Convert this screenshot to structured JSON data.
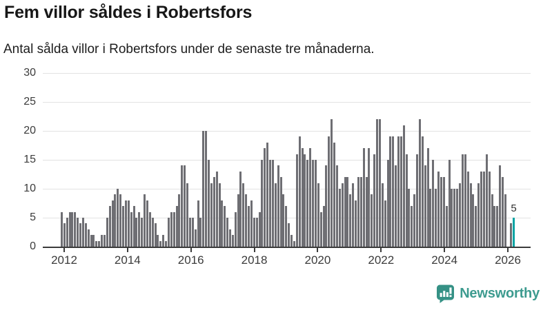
{
  "header": {
    "title": "Fem villor såldes i Robertsfors",
    "subtitle": "Antal sålda villor i Robertsfors under de senaste tre månaderna."
  },
  "chart_data": {
    "type": "bar",
    "title": "Fem villor såldes i Robertsfors",
    "subtitle": "Antal sålda villor i Robertsfors under de senaste tre månaderna.",
    "ylabel": "",
    "xlabel": "",
    "ylim": [
      0,
      30
    ],
    "y_tick_labels": [
      "0",
      "5",
      "10",
      "15",
      "20",
      "25",
      "30"
    ],
    "y_tick_values": [
      0,
      5,
      10,
      15,
      20,
      25,
      30
    ],
    "x_tick_labels": [
      "2012",
      "2014",
      "2016",
      "2018",
      "2020",
      "2022",
      "2024",
      "2026"
    ],
    "grid": "horizontal",
    "period_start": "2012",
    "period_end": "2026",
    "values": [
      6,
      4,
      5,
      6,
      6,
      6,
      5,
      4,
      5,
      4,
      3,
      2,
      2,
      1,
      1,
      2,
      2,
      5,
      7,
      8,
      9,
      10,
      9,
      7,
      8,
      8,
      6,
      7,
      5,
      6,
      5,
      9,
      8,
      6,
      5,
      4,
      2,
      1,
      2,
      1,
      5,
      6,
      6,
      7,
      9,
      14,
      14,
      11,
      5,
      5,
      3,
      8,
      5,
      20,
      20,
      15,
      11,
      12,
      13,
      11,
      8,
      7,
      5,
      3,
      2,
      6,
      9,
      13,
      11,
      9,
      7,
      8,
      5,
      5,
      6,
      15,
      17,
      18,
      15,
      15,
      11,
      14,
      12,
      9,
      7,
      4,
      2,
      1,
      16,
      19,
      17,
      16,
      15,
      17,
      15,
      15,
      11,
      6,
      7,
      14,
      19,
      22,
      18,
      14,
      10,
      11,
      12,
      12,
      9,
      11,
      8,
      12,
      12,
      17,
      12,
      17,
      9,
      16,
      22,
      22,
      11,
      8,
      15,
      19,
      19,
      14,
      19,
      19,
      21,
      16,
      10,
      7,
      9,
      16,
      22,
      19,
      14,
      17,
      10,
      15,
      10,
      13,
      12,
      12,
      7,
      15,
      10,
      10,
      10,
      11,
      16,
      16,
      13,
      11,
      9,
      7,
      11,
      13,
      13,
      16,
      13,
      9,
      7,
      7,
      14,
      12,
      9,
      0,
      4,
      5
    ],
    "bar_color": "#6e6e73",
    "highlight": {
      "index_from_end": 0,
      "value": 5,
      "label": "5",
      "color": "#00a3a3"
    },
    "legend": null
  },
  "colors": {
    "bar": "#6e6e73",
    "highlight": "#00a3a3",
    "grid": "#e2e2e2",
    "axis": "#3a3a3a",
    "brand": "#3d9b8f"
  },
  "footer": {
    "brand": "Newsworthy"
  }
}
